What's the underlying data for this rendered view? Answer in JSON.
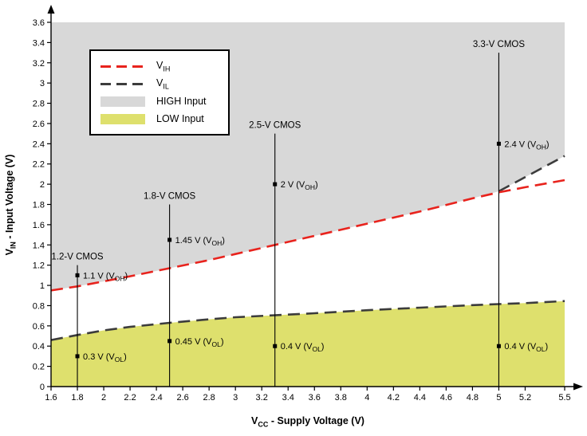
{
  "chart_data": {
    "type": "line",
    "title": "",
    "grid": false,
    "legend_position": "top-left",
    "xlabel": {
      "pre": "V",
      "sub": "CC",
      "post": " - Supply Voltage (V)"
    },
    "ylabel": {
      "pre": "V",
      "sub": "IN",
      "post": " - Input Voltage (V)"
    },
    "xlim": [
      1.6,
      5.5
    ],
    "ylim": [
      0,
      3.6
    ],
    "x_ticks": [
      1.6,
      1.8,
      2,
      2.2,
      2.4,
      2.6,
      2.8,
      3,
      3.2,
      3.4,
      3.6,
      3.8,
      4,
      4.2,
      4.4,
      4.6,
      4.8,
      5,
      5.2,
      5.5
    ],
    "y_ticks": [
      0,
      0.2,
      0.4,
      0.6,
      0.8,
      1,
      1.2,
      1.4,
      1.6,
      1.8,
      2,
      2.2,
      2.4,
      2.6,
      2.8,
      3,
      3.2,
      3.4,
      3.6
    ],
    "series": [
      {
        "name": "VIH",
        "color": "#e8231d",
        "dash": "long-dash",
        "points": [
          [
            1.6,
            0.95
          ],
          [
            1.8,
            0.99
          ],
          [
            2.0,
            1.04
          ],
          [
            2.2,
            1.09
          ],
          [
            2.5,
            1.17
          ],
          [
            2.8,
            1.25
          ],
          [
            3.0,
            1.31
          ],
          [
            3.3,
            1.4
          ],
          [
            3.6,
            1.49
          ],
          [
            4.0,
            1.61
          ],
          [
            4.4,
            1.73
          ],
          [
            4.8,
            1.86
          ],
          [
            5.0,
            1.92
          ],
          [
            5.2,
            1.97
          ],
          [
            5.5,
            2.04
          ]
        ]
      },
      {
        "name": "VIL",
        "color": "#3c3c3c",
        "dash": "long-dash",
        "points": [
          [
            1.6,
            0.46
          ],
          [
            1.8,
            0.51
          ],
          [
            2.0,
            0.555
          ],
          [
            2.2,
            0.59
          ],
          [
            2.5,
            0.63
          ],
          [
            2.8,
            0.665
          ],
          [
            3.0,
            0.685
          ],
          [
            3.3,
            0.705
          ],
          [
            3.6,
            0.725
          ],
          [
            4.0,
            0.755
          ],
          [
            4.4,
            0.78
          ],
          [
            4.8,
            0.805
          ],
          [
            5.0,
            0.815
          ],
          [
            5.2,
            0.825
          ],
          [
            5.5,
            0.845
          ]
        ]
      }
    ],
    "regions": {
      "high": {
        "label": "HIGH Input",
        "color": "#d8d8d8",
        "top": 3.6,
        "boundary": [
          [
            1.6,
            0.95
          ],
          [
            1.8,
            0.99
          ],
          [
            2.0,
            1.04
          ],
          [
            2.2,
            1.09
          ],
          [
            2.5,
            1.17
          ],
          [
            2.8,
            1.25
          ],
          [
            3.0,
            1.31
          ],
          [
            3.3,
            1.4
          ],
          [
            3.6,
            1.49
          ],
          [
            4.0,
            1.61
          ],
          [
            4.4,
            1.73
          ],
          [
            4.8,
            1.86
          ],
          [
            5.0,
            1.93
          ],
          [
            5.5,
            2.28
          ]
        ]
      },
      "low": {
        "label": "LOW Input",
        "color": "#dee06d",
        "bottom": 0
      }
    },
    "extra_boundary_segment": [
      [
        5.0,
        1.93
      ],
      [
        5.5,
        2.28
      ]
    ],
    "annotations": [
      {
        "x": 1.8,
        "top": 1.2,
        "label": "1.2-V CMOS",
        "points": [
          {
            "y": 1.1,
            "pre": "1.1 V (V",
            "sub": "OH",
            "post": ")"
          },
          {
            "y": 0.3,
            "pre": "0.3 V (V",
            "sub": "OL",
            "post": ")"
          }
        ]
      },
      {
        "x": 2.5,
        "top": 1.8,
        "label": "1.8-V CMOS",
        "points": [
          {
            "y": 1.45,
            "pre": "1.45 V (V",
            "sub": "OH",
            "post": ")"
          },
          {
            "y": 0.45,
            "pre": "0.45 V (V",
            "sub": "OL",
            "post": ")"
          }
        ]
      },
      {
        "x": 3.3,
        "top": 2.5,
        "label": "2.5-V CMOS",
        "points": [
          {
            "y": 2,
            "pre": "2 V (V",
            "sub": "OH",
            "post": ")"
          },
          {
            "y": 0.4,
            "pre": "0.4 V (V",
            "sub": "OL",
            "post": ")"
          }
        ]
      },
      {
        "x": 5,
        "top": 3.3,
        "label": "3.3-V CMOS",
        "points": [
          {
            "y": 2.4,
            "pre": "2.4 V (V",
            "sub": "OH",
            "post": ")"
          },
          {
            "y": 0.4,
            "pre": "0.4 V (V",
            "sub": "OL",
            "post": ")"
          }
        ]
      }
    ]
  },
  "legend": {
    "items": [
      {
        "kind": "line",
        "color": "#e8231d",
        "label_pre": "V",
        "label_sub": "IH"
      },
      {
        "kind": "line",
        "color": "#3c3c3c",
        "label_pre": "V",
        "label_sub": "IL"
      },
      {
        "kind": "swatch",
        "color": "#d8d8d8",
        "label": "HIGH Input"
      },
      {
        "kind": "swatch",
        "color": "#dee06d",
        "label": "LOW Input"
      }
    ]
  }
}
